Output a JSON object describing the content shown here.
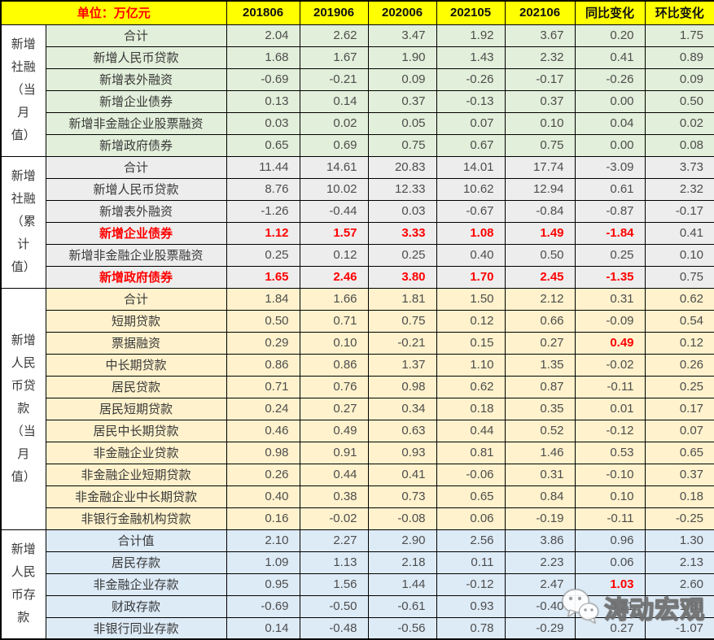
{
  "header": {
    "unit_label": "单位：万亿元",
    "columns": [
      "201806",
      "201906",
      "202006",
      "202105",
      "202106",
      "同比变化",
      "环比变化"
    ]
  },
  "groups": [
    {
      "label": "新增社融（当月值）",
      "label_lines": [
        "新增",
        "社融",
        "（当",
        "月",
        "值）"
      ],
      "bg": "#E2EFDA",
      "rows": [
        {
          "label": "合计",
          "values": [
            "2.04",
            "2.62",
            "3.47",
            "1.92",
            "3.67",
            "0.20",
            "1.75"
          ]
        },
        {
          "label": "新增人民币贷款",
          "values": [
            "1.68",
            "1.67",
            "1.90",
            "1.43",
            "2.32",
            "0.41",
            "0.89"
          ]
        },
        {
          "label": "新增表外融资",
          "values": [
            "-0.69",
            "-0.21",
            "0.09",
            "-0.26",
            "-0.17",
            "-0.26",
            "0.09"
          ]
        },
        {
          "label": "新增企业债券",
          "values": [
            "0.13",
            "0.14",
            "0.37",
            "-0.13",
            "0.37",
            "0.00",
            "0.50"
          ]
        },
        {
          "label": "新增非金融企业股票融资",
          "values": [
            "0.03",
            "0.02",
            "0.05",
            "0.07",
            "0.10",
            "0.04",
            "0.02"
          ]
        },
        {
          "label": "新增政府债券",
          "values": [
            "0.65",
            "0.69",
            "0.75",
            "0.67",
            "0.75",
            "0.00",
            "0.08"
          ]
        }
      ]
    },
    {
      "label": "新增社融（累计值）",
      "label_lines": [
        "新增",
        "社融",
        "（累",
        "计",
        "值）"
      ],
      "bg": "#EDEDED",
      "rows": [
        {
          "label": "合计",
          "values": [
            "11.44",
            "14.61",
            "20.83",
            "14.01",
            "17.74",
            "-3.09",
            "3.73"
          ]
        },
        {
          "label": "新增人民币贷款",
          "values": [
            "8.76",
            "10.02",
            "12.33",
            "10.62",
            "12.94",
            "0.61",
            "2.32"
          ]
        },
        {
          "label": "新增表外融资",
          "values": [
            "-1.26",
            "-0.44",
            "0.03",
            "-0.67",
            "-0.84",
            "-0.87",
            "-0.17"
          ]
        },
        {
          "label": "新增企业债券",
          "label_red": true,
          "red_values": [
            0,
            1,
            2,
            3,
            4,
            5
          ],
          "values": [
            "1.12",
            "1.57",
            "3.33",
            "1.08",
            "1.49",
            "-1.84",
            "0.41"
          ]
        },
        {
          "label": "新增非金融企业股票融资",
          "values": [
            "0.25",
            "0.12",
            "0.25",
            "0.40",
            "0.50",
            "0.25",
            "0.10"
          ]
        },
        {
          "label": "新增政府债券",
          "label_red": true,
          "red_values": [
            0,
            1,
            2,
            3,
            4,
            5
          ],
          "values": [
            "1.65",
            "2.46",
            "3.80",
            "1.70",
            "2.45",
            "-1.35",
            "0.75"
          ]
        }
      ]
    },
    {
      "label": "新增人民币贷款（当月值）",
      "label_lines": [
        "新增",
        "人民",
        "币贷",
        "款",
        "（当",
        "月",
        "值）"
      ],
      "bg": "#FFF2CC",
      "rows": [
        {
          "label": "合计",
          "values": [
            "1.84",
            "1.66",
            "1.81",
            "1.50",
            "2.12",
            "0.31",
            "0.62"
          ]
        },
        {
          "label": "短期贷款",
          "values": [
            "0.50",
            "0.71",
            "0.75",
            "0.12",
            "0.66",
            "-0.09",
            "0.54"
          ]
        },
        {
          "label": "票据融资",
          "red_values": [
            5
          ],
          "values": [
            "0.29",
            "0.10",
            "-0.21",
            "0.15",
            "0.27",
            "0.49",
            "0.12"
          ]
        },
        {
          "label": "中长期贷款",
          "values": [
            "0.86",
            "0.86",
            "1.37",
            "1.10",
            "1.35",
            "-0.02",
            "0.26"
          ]
        },
        {
          "label": "居民贷款",
          "values": [
            "0.71",
            "0.76",
            "0.98",
            "0.62",
            "0.87",
            "-0.11",
            "0.25"
          ]
        },
        {
          "label": "居民短期贷款",
          "values": [
            "0.24",
            "0.27",
            "0.34",
            "0.18",
            "0.35",
            "0.01",
            "0.17"
          ]
        },
        {
          "label": "居民中长期贷款",
          "values": [
            "0.46",
            "0.49",
            "0.63",
            "0.44",
            "0.52",
            "-0.12",
            "0.07"
          ]
        },
        {
          "label": "非金融企业贷款",
          "values": [
            "0.98",
            "0.91",
            "0.93",
            "0.81",
            "1.46",
            "0.53",
            "0.65"
          ]
        },
        {
          "label": "非金融企业短期贷款",
          "values": [
            "0.26",
            "0.44",
            "0.41",
            "-0.06",
            "0.31",
            "-0.10",
            "0.37"
          ]
        },
        {
          "label": "非金融企业中长期贷款",
          "values": [
            "0.40",
            "0.38",
            "0.73",
            "0.65",
            "0.84",
            "0.10",
            "0.18"
          ]
        },
        {
          "label": "非银行金融机构贷款",
          "values": [
            "0.16",
            "-0.02",
            "-0.08",
            "0.06",
            "-0.19",
            "-0.11",
            "-0.25"
          ]
        }
      ]
    },
    {
      "label": "新增人民币存款",
      "label_lines": [
        "新增",
        "人民",
        "币存",
        "款"
      ],
      "bg": "#DDEBF7",
      "rows": [
        {
          "label": "合计值",
          "values": [
            "2.10",
            "2.27",
            "2.90",
            "2.56",
            "3.86",
            "0.96",
            "1.30"
          ]
        },
        {
          "label": "居民存款",
          "values": [
            "1.09",
            "1.13",
            "2.18",
            "0.11",
            "2.23",
            "0.06",
            "2.13"
          ]
        },
        {
          "label": "非金融企业存款",
          "red_values": [
            5
          ],
          "values": [
            "0.95",
            "1.56",
            "1.44",
            "-0.12",
            "2.47",
            "1.03",
            "2.60"
          ]
        },
        {
          "label": "财政存款",
          "values": [
            "-0.69",
            "-0.50",
            "-0.61",
            "0.93",
            "-0.40",
            "0.21",
            "-1.33"
          ]
        },
        {
          "label": "非银行同业存款",
          "values": [
            "0.14",
            "-0.48",
            "-0.56",
            "0.78",
            "-0.29",
            "0.27",
            "-1.07"
          ]
        }
      ]
    }
  ],
  "watermark": {
    "text": "涛动宏观"
  },
  "colors": {
    "header_bg": "#FFFF00",
    "unit_text": "#FF0000",
    "highlight_red": "#FF0000",
    "border": "#000000",
    "group_bgs": [
      "#E2EFDA",
      "#EDEDED",
      "#FFF2CC",
      "#DDEBF7"
    ]
  }
}
